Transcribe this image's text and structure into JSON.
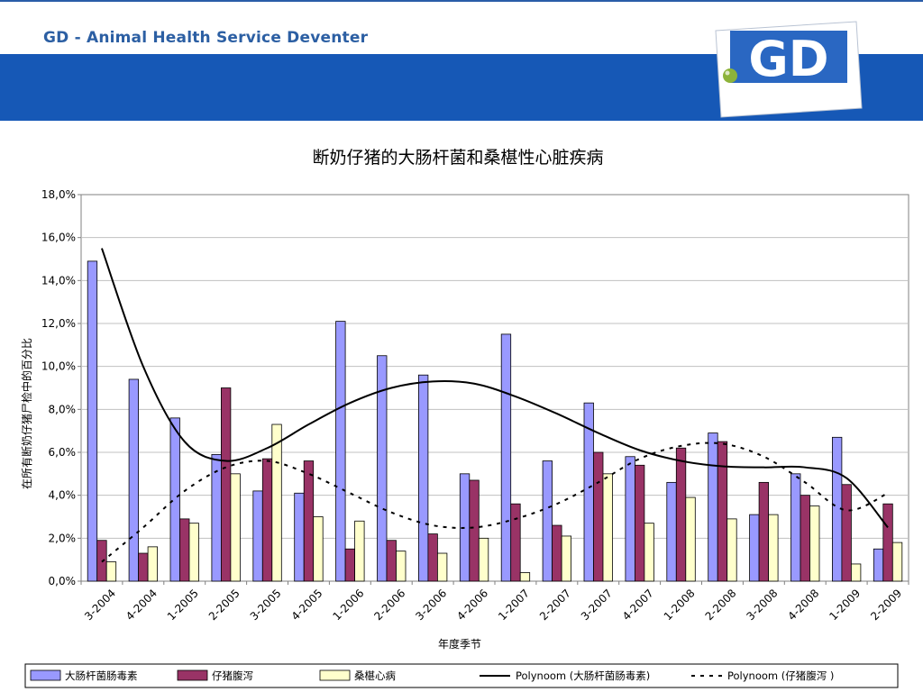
{
  "header": {
    "org_name": "GD - Animal Health Service Deventer",
    "logo_text": "GD"
  },
  "colors": {
    "header_band": "#1658b6",
    "header_text": "#2c5fa3",
    "series_ecoli": "#9999ff",
    "series_diarrhea": "#993366",
    "series_mulberry": "#ffffcc"
  },
  "chart_data": {
    "type": "bar",
    "title": "断奶仔猪的大肠杆菌和桑椹性心脏疾病",
    "xlabel": "年度季节",
    "ylabel": "在所有断奶仔猪尸检中的百分比",
    "ylim": [
      0,
      18
    ],
    "y_ticks": [
      "0,0%",
      "2,0%",
      "4,0%",
      "6,0%",
      "8,0%",
      "10,0%",
      "12,0%",
      "14,0%",
      "16,0%",
      "18,0%"
    ],
    "grid": true,
    "legend_position": "bottom",
    "categories": [
      "3-2004",
      "4-2004",
      "1-2005",
      "2-2005",
      "3-2005",
      "4-2005",
      "1-2006",
      "2-2006",
      "3-2006",
      "4-2006",
      "1-2007",
      "2-2007",
      "3-2007",
      "4-2007",
      "1-2008",
      "2-2008",
      "3-2008",
      "4-2008",
      "1-2009",
      "2-2009"
    ],
    "series": [
      {
        "name": "大肠杆菌肠毒素",
        "values": [
          14.9,
          9.4,
          7.6,
          5.9,
          4.2,
          4.1,
          12.1,
          10.5,
          9.6,
          5.0,
          11.5,
          5.6,
          8.3,
          5.8,
          4.6,
          6.9,
          3.1,
          5.0,
          6.7,
          1.5
        ]
      },
      {
        "name": "仔猪腹泻",
        "values": [
          1.9,
          1.3,
          2.9,
          9.0,
          5.7,
          5.6,
          1.5,
          1.9,
          2.2,
          4.7,
          3.6,
          2.6,
          6.0,
          5.4,
          6.2,
          6.5,
          4.6,
          4.0,
          4.5,
          3.6
        ]
      },
      {
        "name": "桑椹心病",
        "values": [
          0.9,
          1.6,
          2.7,
          5.0,
          7.3,
          3.0,
          2.8,
          1.4,
          1.3,
          2.0,
          0.4,
          2.1,
          5.0,
          2.7,
          3.9,
          2.9,
          3.1,
          3.5,
          0.8,
          1.8
        ]
      }
    ],
    "trendlines": [
      {
        "name": "Polynoom (大肠杆菌肠毒素)",
        "style": "solid",
        "values": [
          15.5,
          10.0,
          6.5,
          5.6,
          6.2,
          7.3,
          8.3,
          9.0,
          9.3,
          9.2,
          8.6,
          7.8,
          6.9,
          6.1,
          5.6,
          5.35,
          5.3,
          5.3,
          4.8,
          2.5
        ]
      },
      {
        "name": "Polynoom (仔猪腹泻 )",
        "style": "dashed",
        "values": [
          0.9,
          2.5,
          4.2,
          5.3,
          5.6,
          5.0,
          4.1,
          3.2,
          2.6,
          2.5,
          2.9,
          3.6,
          4.6,
          5.7,
          6.3,
          6.4,
          5.8,
          4.6,
          3.3,
          4.1
        ]
      }
    ]
  }
}
